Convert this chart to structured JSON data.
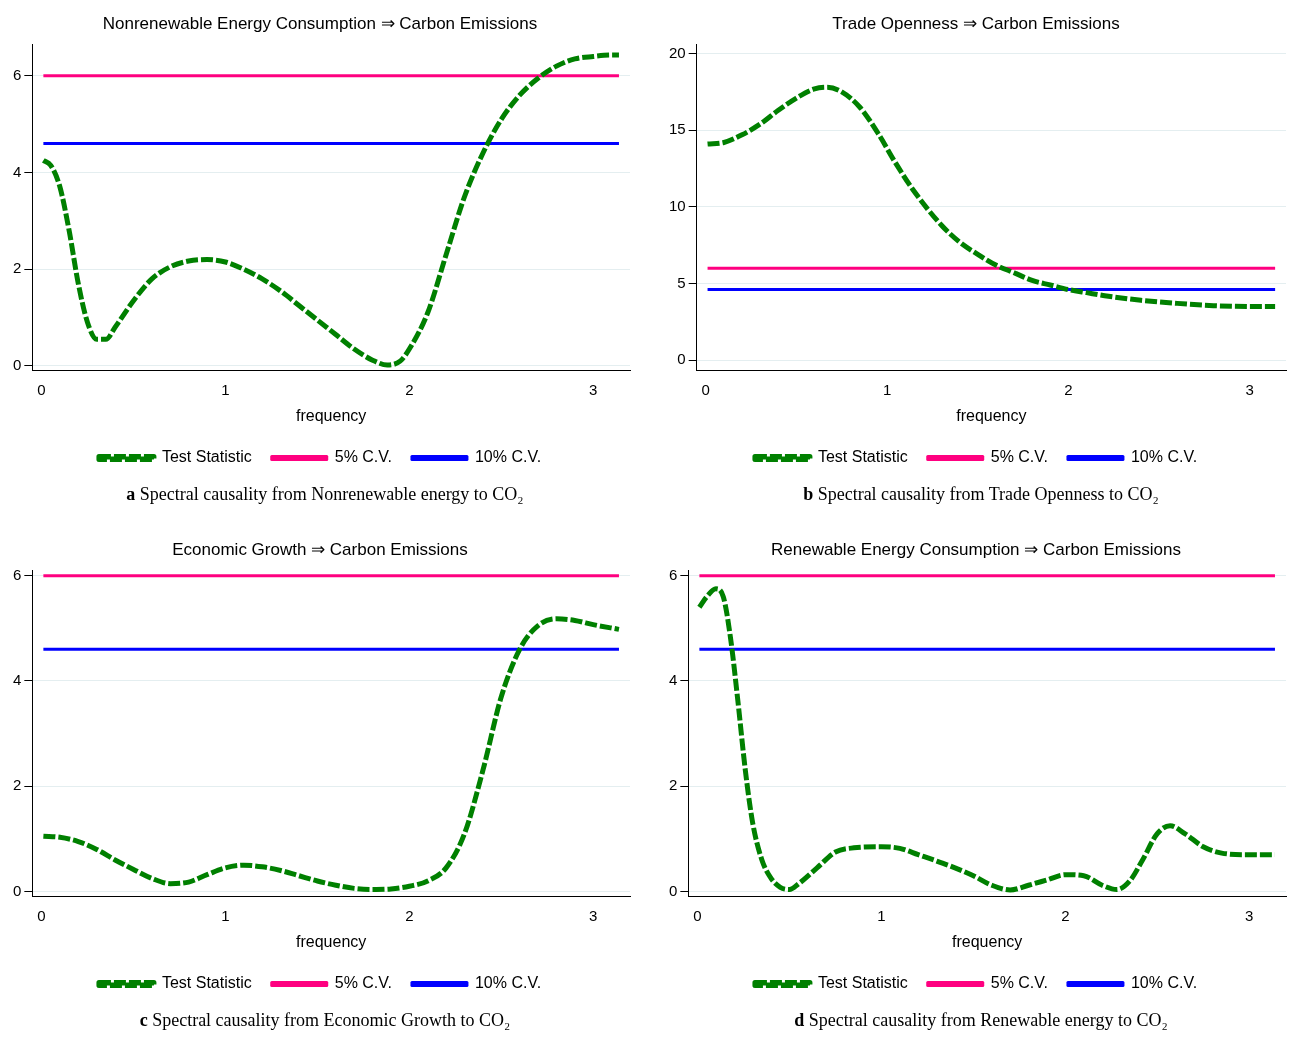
{
  "chart_data": [
    {
      "type": "line",
      "title": "Nonrenewable Energy Consumption ⇒ Carbon Emissions",
      "xlabel": "frequency",
      "xlim": [
        -0.05,
        3.2
      ],
      "xticks": [
        0,
        1,
        2,
        3
      ],
      "ylim": [
        -0.1,
        6.65
      ],
      "yticks": [
        0,
        2,
        4,
        6
      ],
      "grid": "y",
      "legend": "bottom",
      "marker": "none",
      "annotations": [
        "a Spectral causality from Nonrenewable energy to CO₂"
      ],
      "series": [
        {
          "name": "Test Statistic",
          "color": "#008000",
          "line_style": "dashed",
          "x": [
            0.01,
            0.05,
            0.1,
            0.15,
            0.2,
            0.25,
            0.3,
            0.35,
            0.4,
            0.5,
            0.6,
            0.7,
            0.8,
            0.9,
            1.0,
            1.1,
            1.2,
            1.3,
            1.4,
            1.5,
            1.6,
            1.7,
            1.8,
            1.88,
            1.95,
            2.0,
            2.1,
            2.2,
            2.3,
            2.4,
            2.5,
            2.6,
            2.7,
            2.8,
            2.9,
            3.0,
            3.1,
            3.14
          ],
          "values": [
            4.25,
            4.15,
            3.7,
            2.8,
            1.7,
            0.9,
            0.55,
            0.55,
            0.8,
            1.35,
            1.8,
            2.05,
            2.17,
            2.2,
            2.15,
            2.0,
            1.8,
            1.55,
            1.25,
            0.95,
            0.65,
            0.35,
            0.12,
            0.02,
            0.1,
            0.35,
            1.1,
            2.3,
            3.5,
            4.4,
            5.1,
            5.6,
            5.95,
            6.2,
            6.35,
            6.4,
            6.43,
            6.43
          ]
        },
        {
          "name": "5% C.V.",
          "color": "#ff0080",
          "line_style": "solid",
          "x": [
            0.01,
            3.14
          ],
          "values": [
            6,
            6
          ]
        },
        {
          "name": "10% C.V.",
          "color": "#0000ff",
          "line_style": "solid",
          "x": [
            0.01,
            3.14
          ],
          "values": [
            4.6,
            4.6
          ]
        }
      ]
    },
    {
      "type": "line",
      "title": "Trade Openness ⇒ Carbon Emissions",
      "xlabel": "frequency",
      "xlim": [
        -0.05,
        3.2
      ],
      "xticks": [
        0,
        1,
        2,
        3
      ],
      "ylim": [
        -0.7,
        20.6
      ],
      "yticks": [
        0,
        5,
        10,
        15,
        20
      ],
      "grid": "y",
      "legend": "bottom",
      "marker": "none",
      "annotations": [
        "b Spectral causality from Trade Openness to CO₂"
      ],
      "series": [
        {
          "name": "Test Statistic",
          "color": "#008000",
          "line_style": "dashed",
          "x": [
            0.01,
            0.1,
            0.2,
            0.3,
            0.4,
            0.5,
            0.6,
            0.67,
            0.75,
            0.85,
            0.95,
            1.05,
            1.15,
            1.3,
            1.4,
            1.5,
            1.6,
            1.7,
            1.8,
            1.9,
            2.0,
            2.1,
            2.2,
            2.4,
            2.6,
            2.8,
            3.0,
            3.14
          ],
          "values": [
            14.1,
            14.2,
            14.7,
            15.4,
            16.3,
            17.1,
            17.7,
            17.8,
            17.5,
            16.5,
            14.8,
            12.8,
            11.0,
            8.8,
            7.7,
            6.9,
            6.2,
            5.7,
            5.2,
            4.9,
            4.6,
            4.4,
            4.2,
            3.9,
            3.7,
            3.55,
            3.5,
            3.5
          ]
        },
        {
          "name": "5% C.V.",
          "color": "#ff0080",
          "line_style": "solid",
          "x": [
            0.01,
            3.14
          ],
          "values": [
            6,
            6
          ]
        },
        {
          "name": "10% C.V.",
          "color": "#0000ff",
          "line_style": "solid",
          "x": [
            0.01,
            3.14
          ],
          "values": [
            4.6,
            4.6
          ]
        }
      ]
    },
    {
      "type": "line",
      "title": "Economic Growth ⇒ Carbon Emissions",
      "xlabel": "frequency",
      "xlim": [
        -0.05,
        3.2
      ],
      "xticks": [
        0,
        1,
        2,
        3
      ],
      "ylim": [
        -0.1,
        6.1
      ],
      "yticks": [
        0,
        2,
        4,
        6
      ],
      "grid": "y",
      "legend": "bottom",
      "marker": "none",
      "annotations": [
        "c Spectral causality from Economic Growth to CO₂"
      ],
      "series": [
        {
          "name": "Test Statistic",
          "color": "#008000",
          "line_style": "dashed",
          "x": [
            0.01,
            0.1,
            0.2,
            0.3,
            0.4,
            0.5,
            0.6,
            0.7,
            0.8,
            0.9,
            1.0,
            1.1,
            1.2,
            1.3,
            1.4,
            1.5,
            1.6,
            1.7,
            1.8,
            1.9,
            2.0,
            2.1,
            2.2,
            2.3,
            2.4,
            2.5,
            2.6,
            2.7,
            2.8,
            2.9,
            3.0,
            3.14
          ],
          "values": [
            1.05,
            1.03,
            0.95,
            0.8,
            0.6,
            0.42,
            0.25,
            0.15,
            0.18,
            0.32,
            0.45,
            0.5,
            0.47,
            0.4,
            0.3,
            0.2,
            0.12,
            0.06,
            0.04,
            0.05,
            0.1,
            0.2,
            0.45,
            1.1,
            2.3,
            3.7,
            4.6,
            5.05,
            5.18,
            5.15,
            5.07,
            4.98
          ]
        },
        {
          "name": "5% C.V.",
          "color": "#ff0080",
          "line_style": "solid",
          "x": [
            0.01,
            3.14
          ],
          "values": [
            6,
            6
          ]
        },
        {
          "name": "10% C.V.",
          "color": "#0000ff",
          "line_style": "solid",
          "x": [
            0.01,
            3.14
          ],
          "values": [
            4.6,
            4.6
          ]
        }
      ]
    },
    {
      "type": "line",
      "title": "Renewable Energy Consumption ⇒ Carbon Emissions",
      "xlabel": "frequency",
      "xlim": [
        -0.05,
        3.2
      ],
      "xticks": [
        0,
        1,
        2,
        3
      ],
      "ylim": [
        -0.1,
        6.1
      ],
      "yticks": [
        0,
        2,
        4,
        6
      ],
      "grid": "y",
      "legend": "bottom",
      "marker": "none",
      "annotations": [
        "d Spectral causality from Renewable energy to CO₂"
      ],
      "series": [
        {
          "name": "Test Statistic",
          "color": "#008000",
          "line_style": "dashed",
          "x": [
            0.01,
            0.05,
            0.1,
            0.14,
            0.18,
            0.22,
            0.26,
            0.3,
            0.35,
            0.4,
            0.45,
            0.5,
            0.55,
            0.65,
            0.75,
            0.85,
            1.0,
            1.1,
            1.2,
            1.3,
            1.4,
            1.5,
            1.6,
            1.7,
            1.8,
            1.9,
            2.0,
            2.1,
            2.2,
            2.28,
            2.35,
            2.42,
            2.5,
            2.57,
            2.65,
            2.75,
            2.85,
            3.0,
            3.14
          ],
          "values": [
            5.4,
            5.6,
            5.75,
            5.6,
            4.8,
            3.6,
            2.3,
            1.3,
            0.6,
            0.25,
            0.08,
            0.04,
            0.15,
            0.45,
            0.75,
            0.83,
            0.85,
            0.82,
            0.7,
            0.58,
            0.45,
            0.3,
            0.12,
            0.03,
            0.12,
            0.22,
            0.32,
            0.3,
            0.12,
            0.04,
            0.2,
            0.6,
            1.1,
            1.25,
            1.1,
            0.85,
            0.73,
            0.7,
            0.7
          ]
        },
        {
          "name": "5% C.V.",
          "color": "#ff0080",
          "line_style": "solid",
          "x": [
            0.01,
            3.14
          ],
          "values": [
            6,
            6
          ]
        },
        {
          "name": "10% C.V.",
          "color": "#0000ff",
          "line_style": "solid",
          "x": [
            0.01,
            3.14
          ],
          "values": [
            4.6,
            4.6
          ]
        }
      ]
    }
  ]
}
